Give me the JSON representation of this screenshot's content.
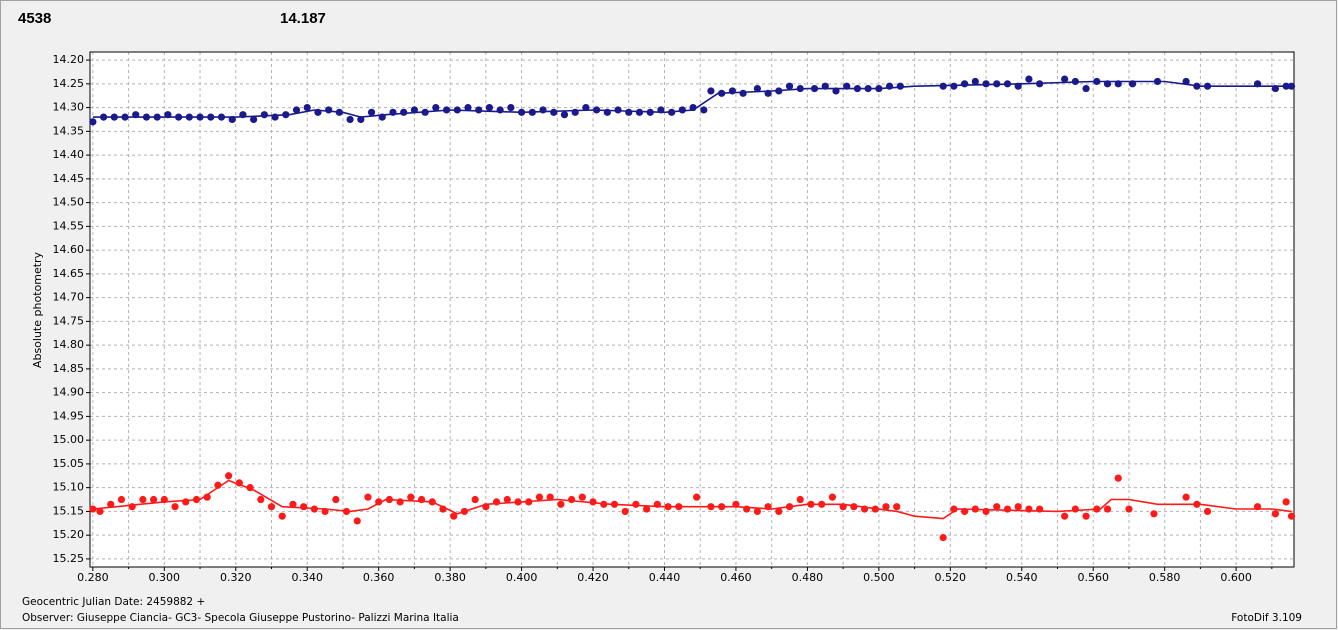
{
  "chart_data": {
    "type": "scatter",
    "annotations": [
      {
        "text": "4538",
        "color": "#ff0000"
      },
      {
        "text": "14.187",
        "color": "#1a1a8c"
      }
    ],
    "y_label": "Absolute photometry",
    "footer_date": "Geocentric Julian Date: 2459882 +",
    "footer_observer": "Observer: Giuseppe Ciancia- GC3- Specola Giuseppe Pustorino- Palizzi Marina Italia",
    "footer_software": "FotoDif 3.109",
    "xlim": [
      0.2792,
      0.6162
    ],
    "ylim": [
      14.183,
      15.267
    ],
    "y_inverted": true,
    "grid": true,
    "xticks": [
      {
        "value": 0.28,
        "label": "0.280"
      },
      {
        "value": 0.3,
        "label": "0.300"
      },
      {
        "value": 0.32,
        "label": "0.320"
      },
      {
        "value": 0.34,
        "label": "0.340"
      },
      {
        "value": 0.36,
        "label": "0.360"
      },
      {
        "value": 0.38,
        "label": "0.380"
      },
      {
        "value": 0.4,
        "label": "0.400"
      },
      {
        "value": 0.42,
        "label": "0.420"
      },
      {
        "value": 0.44,
        "label": "0.440"
      },
      {
        "value": 0.46,
        "label": "0.460"
      },
      {
        "value": 0.48,
        "label": "0.480"
      },
      {
        "value": 0.5,
        "label": "0.500"
      },
      {
        "value": 0.52,
        "label": "0.520"
      },
      {
        "value": 0.54,
        "label": "0.540"
      },
      {
        "value": 0.56,
        "label": "0.560"
      },
      {
        "value": 0.58,
        "label": "0.580"
      },
      {
        "value": 0.6,
        "label": "0.600"
      }
    ],
    "xminorticks": [
      0.29,
      0.31,
      0.33,
      0.35,
      0.37,
      0.39,
      0.41,
      0.43,
      0.45,
      0.47,
      0.49,
      0.51,
      0.53,
      0.55,
      0.57,
      0.59,
      0.61
    ],
    "yticks": [
      {
        "value": 14.2,
        "label": "14.20"
      },
      14.25,
      {
        "value": 14.3,
        "label": "14.30"
      },
      14.35,
      {
        "value": 14.4,
        "label": "14.40"
      },
      14.45,
      {
        "value": 14.5,
        "label": "14.50"
      },
      14.55,
      {
        "value": 14.6,
        "label": "14.60"
      },
      14.65,
      {
        "value": 14.7,
        "label": "14.70"
      },
      14.75,
      {
        "value": 14.8,
        "label": "14.80"
      },
      14.85,
      {
        "value": 14.9,
        "label": "14.90"
      },
      14.95,
      {
        "value": 15.0,
        "label": "15.00"
      },
      15.05,
      {
        "value": 15.1,
        "label": "15.10"
      },
      15.15,
      {
        "value": 15.2,
        "label": "15.20"
      },
      15.25
    ],
    "series": [
      {
        "kind": "points",
        "color": "#1a1a8c",
        "x": [
          0.28,
          0.283,
          0.286,
          0.289,
          0.292,
          0.295,
          0.298,
          0.301,
          0.304,
          0.307,
          0.31,
          0.313,
          0.316,
          0.319,
          0.322,
          0.325,
          0.328,
          0.331,
          0.334,
          0.337,
          0.34,
          0.343,
          0.346,
          0.349,
          0.352,
          0.355,
          0.358,
          0.361,
          0.364,
          0.367,
          0.37,
          0.373,
          0.376,
          0.379,
          0.382,
          0.385,
          0.388,
          0.391,
          0.394,
          0.397,
          0.4,
          0.403,
          0.406,
          0.409,
          0.412,
          0.415,
          0.418,
          0.421,
          0.424,
          0.427,
          0.43,
          0.433,
          0.436,
          0.439,
          0.442,
          0.445,
          0.448,
          0.451,
          0.453,
          0.456,
          0.459,
          0.462,
          0.466,
          0.469,
          0.472,
          0.475,
          0.478,
          0.482,
          0.485,
          0.488,
          0.491,
          0.494,
          0.497,
          0.5,
          0.503,
          0.506,
          0.518,
          0.521,
          0.524,
          0.527,
          0.53,
          0.533,
          0.536,
          0.539,
          0.542,
          0.545,
          0.552,
          0.555,
          0.558,
          0.561,
          0.564,
          0.567,
          0.571,
          0.578,
          0.586,
          0.589,
          0.592,
          0.606,
          0.611,
          0.614,
          0.6155
        ],
        "values": [
          14.33,
          14.32,
          14.32,
          14.32,
          14.315,
          14.32,
          14.32,
          14.315,
          14.32,
          14.32,
          14.32,
          14.32,
          14.32,
          14.325,
          14.315,
          14.325,
          14.315,
          14.32,
          14.315,
          14.305,
          14.3,
          14.31,
          14.305,
          14.31,
          14.325,
          14.325,
          14.31,
          14.32,
          14.31,
          14.31,
          14.305,
          14.31,
          14.3,
          14.305,
          14.305,
          14.3,
          14.305,
          14.3,
          14.305,
          14.3,
          14.31,
          14.31,
          14.305,
          14.31,
          14.315,
          14.31,
          14.3,
          14.305,
          14.31,
          14.305,
          14.31,
          14.31,
          14.31,
          14.305,
          14.31,
          14.305,
          14.3,
          14.305,
          14.265,
          14.27,
          14.265,
          14.27,
          14.26,
          14.27,
          14.265,
          14.255,
          14.26,
          14.26,
          14.255,
          14.265,
          14.255,
          14.26,
          14.26,
          14.26,
          14.255,
          14.255,
          14.255,
          14.255,
          14.25,
          14.245,
          14.25,
          14.25,
          14.25,
          14.255,
          14.24,
          14.25,
          14.24,
          14.245,
          14.26,
          14.245,
          14.25,
          14.25,
          14.25,
          14.245,
          14.245,
          14.255,
          14.255,
          14.25,
          14.26,
          14.255,
          14.255
        ]
      },
      {
        "kind": "line",
        "color": "#1a1a8c",
        "x": [
          0.28,
          0.32,
          0.335,
          0.342,
          0.35,
          0.355,
          0.362,
          0.38,
          0.4,
          0.42,
          0.44,
          0.448,
          0.455,
          0.47,
          0.48,
          0.5,
          0.51,
          0.54,
          0.56,
          0.58,
          0.59,
          0.6155
        ],
        "values": [
          14.32,
          14.32,
          14.315,
          14.305,
          14.31,
          14.32,
          14.315,
          14.305,
          14.31,
          14.305,
          14.31,
          14.305,
          14.27,
          14.265,
          14.26,
          14.26,
          14.255,
          14.25,
          14.245,
          14.245,
          14.255,
          14.255
        ]
      },
      {
        "kind": "points",
        "color": "#ff1a1a",
        "x": [
          0.28,
          0.282,
          0.285,
          0.288,
          0.291,
          0.294,
          0.297,
          0.3,
          0.303,
          0.306,
          0.309,
          0.312,
          0.315,
          0.318,
          0.321,
          0.324,
          0.327,
          0.33,
          0.333,
          0.336,
          0.339,
          0.342,
          0.345,
          0.348,
          0.351,
          0.354,
          0.357,
          0.36,
          0.363,
          0.366,
          0.369,
          0.372,
          0.375,
          0.378,
          0.381,
          0.384,
          0.387,
          0.39,
          0.393,
          0.396,
          0.399,
          0.402,
          0.405,
          0.408,
          0.411,
          0.414,
          0.417,
          0.42,
          0.423,
          0.426,
          0.429,
          0.432,
          0.435,
          0.438,
          0.441,
          0.444,
          0.449,
          0.453,
          0.456,
          0.46,
          0.463,
          0.466,
          0.469,
          0.472,
          0.475,
          0.478,
          0.481,
          0.484,
          0.487,
          0.49,
          0.493,
          0.496,
          0.499,
          0.502,
          0.505,
          0.518,
          0.521,
          0.524,
          0.527,
          0.53,
          0.533,
          0.536,
          0.539,
          0.542,
          0.545,
          0.552,
          0.555,
          0.558,
          0.561,
          0.564,
          0.567,
          0.57,
          0.577,
          0.586,
          0.589,
          0.592,
          0.606,
          0.611,
          0.614,
          0.6155
        ],
        "values": [
          15.145,
          15.15,
          15.135,
          15.125,
          15.14,
          15.125,
          15.125,
          15.125,
          15.14,
          15.13,
          15.125,
          15.12,
          15.095,
          15.075,
          15.09,
          15.1,
          15.125,
          15.14,
          15.16,
          15.135,
          15.14,
          15.145,
          15.15,
          15.125,
          15.15,
          15.17,
          15.12,
          15.13,
          15.125,
          15.13,
          15.12,
          15.125,
          15.13,
          15.145,
          15.16,
          15.15,
          15.125,
          15.14,
          15.13,
          15.125,
          15.13,
          15.13,
          15.12,
          15.12,
          15.135,
          15.125,
          15.12,
          15.13,
          15.135,
          15.135,
          15.15,
          15.135,
          15.145,
          15.135,
          15.14,
          15.14,
          15.12,
          15.14,
          15.14,
          15.135,
          15.145,
          15.15,
          15.14,
          15.15,
          15.14,
          15.125,
          15.135,
          15.135,
          15.12,
          15.14,
          15.14,
          15.145,
          15.145,
          15.14,
          15.14,
          15.205,
          15.145,
          15.15,
          15.145,
          15.15,
          15.14,
          15.145,
          15.14,
          15.145,
          15.145,
          15.16,
          15.145,
          15.16,
          15.145,
          15.145,
          15.08,
          15.145,
          15.155,
          15.12,
          15.135,
          15.15,
          15.14,
          15.155,
          15.13,
          15.16
        ]
      },
      {
        "kind": "line",
        "color": "#ff1a1a",
        "x": [
          0.28,
          0.3,
          0.31,
          0.318,
          0.325,
          0.333,
          0.345,
          0.352,
          0.357,
          0.362,
          0.375,
          0.382,
          0.39,
          0.4,
          0.41,
          0.425,
          0.44,
          0.46,
          0.47,
          0.48,
          0.49,
          0.505,
          0.51,
          0.518,
          0.522,
          0.55,
          0.562,
          0.565,
          0.57,
          0.578,
          0.59,
          0.6,
          0.61,
          0.6155
        ],
        "values": [
          15.145,
          15.13,
          15.125,
          15.085,
          15.105,
          15.14,
          15.145,
          15.15,
          15.145,
          15.125,
          15.13,
          15.155,
          15.135,
          15.13,
          15.125,
          15.135,
          15.14,
          15.14,
          15.145,
          15.135,
          15.135,
          15.15,
          15.16,
          15.165,
          15.145,
          15.15,
          15.145,
          15.125,
          15.125,
          15.135,
          15.135,
          15.145,
          15.145,
          15.15
        ]
      }
    ]
  }
}
